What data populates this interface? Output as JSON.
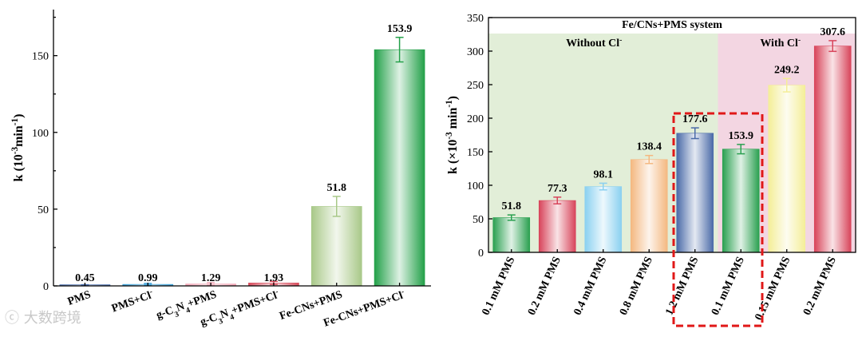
{
  "chart_data": [
    {
      "type": "bar",
      "title": "",
      "ylabel_main": "k (10",
      "ylabel_sup1": "-3",
      "ylabel_mid": "min",
      "ylabel_sup2": "-1",
      "ylabel_end": ")",
      "xlabel": "",
      "ylim": [
        0,
        180
      ],
      "yticks": [
        "0",
        "50",
        "100",
        "150"
      ],
      "categories": [
        {
          "parts": [
            [
              "PMS",
              ""
            ]
          ]
        },
        {
          "parts": [
            [
              "PMS+Cl",
              ""
            ],
            [
              "-",
              "sup"
            ]
          ]
        },
        {
          "parts": [
            [
              "g-C",
              ""
            ],
            [
              "3",
              "sub"
            ],
            [
              "N",
              ""
            ],
            [
              "4",
              "sub"
            ],
            [
              "+PMS",
              ""
            ]
          ]
        },
        {
          "parts": [
            [
              "g-C",
              ""
            ],
            [
              "3",
              "sub"
            ],
            [
              "N",
              ""
            ],
            [
              "4",
              "sub"
            ],
            [
              "+PMS+Cl",
              ""
            ],
            [
              "-",
              "sup"
            ]
          ]
        },
        {
          "parts": [
            [
              "Fe-CNs+PMS",
              ""
            ]
          ]
        },
        {
          "parts": [
            [
              "Fe-CNs+PMS+Cl",
              ""
            ],
            [
              "-",
              "sup"
            ]
          ]
        }
      ],
      "values": [
        0.45,
        0.99,
        1.29,
        1.93,
        51.8,
        153.9
      ],
      "errors": [
        0.3,
        0.6,
        0.8,
        1.0,
        6.5,
        8.0
      ],
      "labels": [
        "0.45",
        "0.99",
        "1.29",
        "1.93",
        "51.8",
        "153.9"
      ],
      "colors": [
        "#4a6fb0",
        "#3aa0d8",
        "#f4a8b8",
        "#d84c5c",
        "#a8c888",
        "#22a048"
      ],
      "grid": false
    },
    {
      "type": "bar",
      "title": "Fe/CNs+PMS system",
      "region_labels": [
        {
          "parts": [
            [
              "Without Cl",
              ""
            ],
            [
              "-",
              "sup"
            ]
          ]
        },
        {
          "parts": [
            [
              "With Cl",
              ""
            ],
            [
              "-",
              "sup"
            ]
          ]
        }
      ],
      "region_colors": [
        "#e2eed8",
        "#f3d6e2"
      ],
      "ylabel_main": "k (×10",
      "ylabel_sup1": "-3",
      "ylabel_mid": " min",
      "ylabel_sup2": "-1",
      "ylabel_end": ")",
      "xlabel": "",
      "ylim": [
        0,
        350
      ],
      "yticks": [
        "0",
        "50",
        "100",
        "150",
        "200",
        "250",
        "300",
        "350"
      ],
      "categories": [
        {
          "parts": [
            [
              "0.1 mM PMS",
              ""
            ]
          ]
        },
        {
          "parts": [
            [
              "0.2 mM PMS",
              ""
            ]
          ]
        },
        {
          "parts": [
            [
              "0.4 mM PMS",
              ""
            ]
          ]
        },
        {
          "parts": [
            [
              "0.8 mM PMS",
              ""
            ]
          ]
        },
        {
          "parts": [
            [
              "1.2 mM PMS",
              ""
            ]
          ]
        },
        {
          "parts": [
            [
              "0.1 mM PMS",
              ""
            ]
          ]
        },
        {
          "parts": [
            [
              "0.15 mM PMS",
              ""
            ]
          ]
        },
        {
          "parts": [
            [
              "0.2 mM PMS",
              ""
            ]
          ]
        }
      ],
      "values": [
        51.8,
        77.3,
        98.1,
        138.4,
        177.6,
        153.9,
        249.2,
        307.6
      ],
      "errors": [
        4,
        5,
        5,
        6,
        8,
        7,
        10,
        8
      ],
      "labels": [
        "51.8",
        "77.3",
        "98.1",
        "138.4",
        "177.6",
        "153.9",
        "249.2",
        "307.6"
      ],
      "colors": [
        "#2aa050",
        "#d8445a",
        "#8ad0f0",
        "#f4b880",
        "#4a6aa8",
        "#2aa050",
        "#f4ee98",
        "#d8445a"
      ],
      "grid": false
    }
  ],
  "watermark": "大数跨境"
}
